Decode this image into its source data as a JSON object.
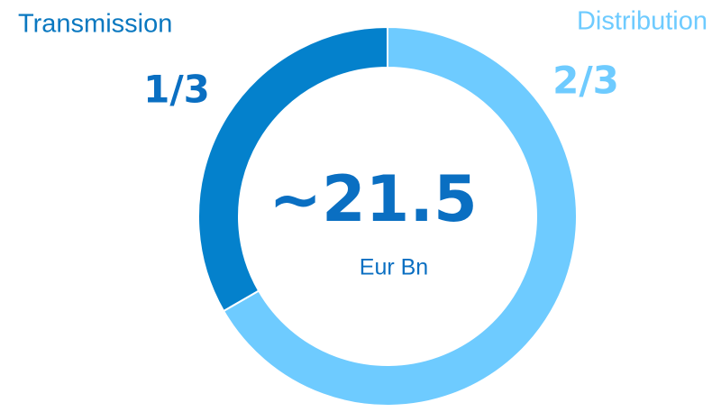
{
  "chart_data": {
    "type": "pie",
    "donut": true,
    "categories": [
      "Transmission",
      "Distribution"
    ],
    "values": [
      0.3333,
      0.6667
    ],
    "value_labels": [
      "1/3",
      "2/3"
    ],
    "colors": [
      "#0481cc",
      "#6ecbff"
    ],
    "center_label": "~21.5",
    "center_sublabel": "Eur Bn"
  }
}
